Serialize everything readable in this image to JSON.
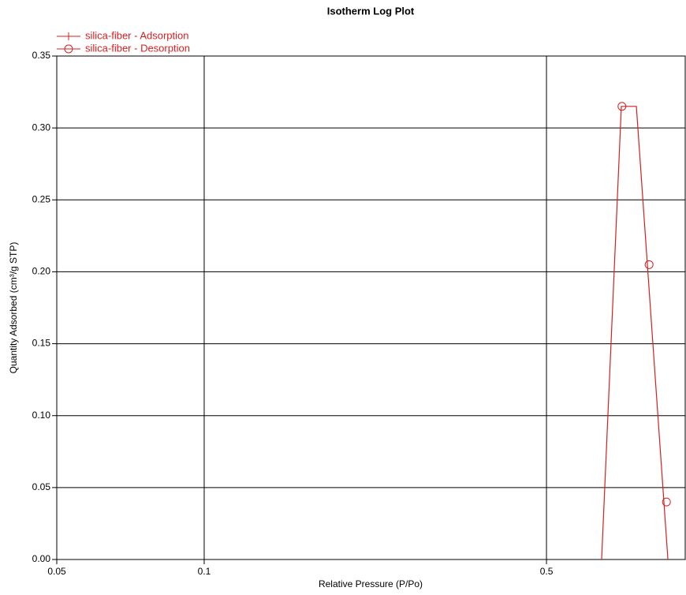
{
  "chart_data": {
    "type": "line",
    "title": "Isotherm Log Plot",
    "x_label": "Relative Pressure (P/Po)",
    "y_label": "Quantity Adsorbed (cm³/g STP)",
    "xscale": "log",
    "xlim": [
      0.05,
      0.96
    ],
    "ylim": [
      0,
      0.35
    ],
    "xticks": [
      0.05,
      0.1,
      0.5
    ],
    "yticks": [
      {
        "value": 0,
        "label": "0.00"
      },
      {
        "value": 0.05,
        "label": "0.05"
      },
      {
        "value": 0.1,
        "label": "0.10"
      },
      {
        "value": 0.15,
        "label": "0.15"
      },
      {
        "value": 0.2,
        "label": "0.20"
      },
      {
        "value": 0.25,
        "label": "0.25"
      },
      {
        "value": 0.3,
        "label": "0.30"
      },
      {
        "value": 0.35,
        "label": "0.35"
      }
    ],
    "grid": true,
    "legend": "top-left",
    "series": [
      {
        "name": "silica-fiber - Adsorption",
        "color": "#d42020",
        "marker": "plus",
        "line": true,
        "x": [
          0.648,
          0.711,
          0.763,
          0.885
        ],
        "values": [
          0,
          0.315,
          0.315,
          0
        ]
      },
      {
        "name": "silica-fiber - Desorption",
        "color": "#d42020",
        "marker": "circle",
        "line": false,
        "x": [
          0.713,
          0.81,
          0.879
        ],
        "values": [
          0.315,
          0.205,
          0.04
        ]
      }
    ]
  }
}
